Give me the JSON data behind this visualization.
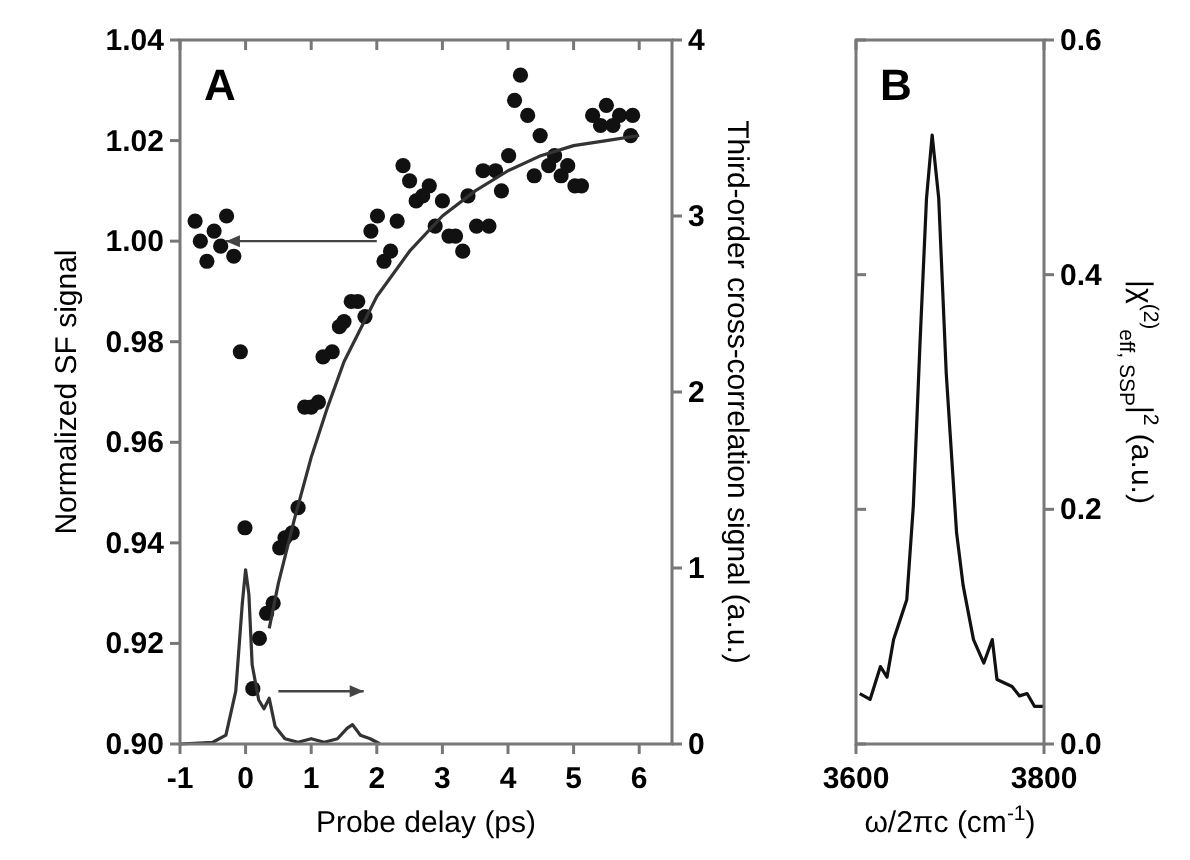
{
  "chart_data": [
    {
      "type": "scatter",
      "title": "A",
      "xlabel": "Probe delay (ps)",
      "ylabel": "Normalized SF signal",
      "y2label": "Third-order cross-correlation signal (a.u.)",
      "xlim": [
        -1,
        6.5
      ],
      "xticks": [
        -1,
        0,
        1,
        2,
        3,
        4,
        5,
        6
      ],
      "ylim": [
        0.9,
        1.04
      ],
      "yticks": [
        {
          "value": 0.9,
          "label": "0.90"
        },
        0.92,
        0.94,
        0.96,
        0.98,
        {
          "value": 1.0,
          "label": "1.00"
        },
        1.02,
        1.04
      ],
      "y2lim": [
        0,
        4
      ],
      "y2ticks": [
        0,
        1,
        2,
        3,
        4
      ],
      "grid": false,
      "series": [
        {
          "type": "scatter",
          "color": "#111111",
          "marker": "circle",
          "x": [
            -0.77,
            -0.69,
            -0.59,
            -0.48,
            -0.38,
            -0.29,
            -0.18,
            -0.08,
            -0.01,
            0.11,
            0.21,
            0.32,
            0.42,
            0.52,
            0.6,
            0.71,
            0.8,
            0.9,
            1.0,
            1.11,
            1.18,
            1.32,
            1.43,
            1.5,
            1.61,
            1.71,
            1.82,
            1.91,
            2.01,
            2.11,
            2.21,
            2.31,
            2.4,
            2.5,
            2.6,
            2.7,
            2.8,
            2.89,
            3.0,
            3.1,
            3.2,
            3.31,
            3.39,
            3.52,
            3.62,
            3.71,
            3.81,
            3.9,
            4.01,
            4.1,
            4.19,
            4.3,
            4.4,
            4.49,
            4.62,
            4.71,
            4.81,
            4.91,
            5.02,
            5.12,
            5.29,
            5.41,
            5.5,
            5.6,
            5.7,
            5.87,
            5.9
          ],
          "values": [
            1.004,
            1.0,
            0.996,
            1.002,
            0.999,
            1.005,
            0.997,
            0.978,
            0.943,
            0.911,
            0.921,
            0.926,
            0.928,
            0.939,
            0.941,
            0.942,
            0.947,
            0.967,
            0.967,
            0.968,
            0.977,
            0.978,
            0.983,
            0.984,
            0.988,
            0.988,
            0.985,
            1.002,
            1.005,
            0.996,
            0.998,
            1.004,
            1.015,
            1.012,
            1.008,
            1.009,
            1.011,
            1.003,
            1.008,
            1.001,
            1.001,
            0.998,
            1.009,
            1.003,
            1.014,
            1.003,
            1.014,
            1.01,
            1.017,
            1.028,
            1.033,
            1.025,
            1.013,
            1.021,
            1.015,
            1.017,
            1.013,
            1.015,
            1.011,
            1.011,
            1.025,
            1.023,
            1.027,
            1.023,
            1.025,
            1.021,
            1.025
          ]
        },
        {
          "type": "line",
          "color": "#333333",
          "line_style": "solid",
          "x": [
            0.36,
            0.5,
            0.75,
            1.0,
            1.25,
            1.5,
            2.0,
            2.5,
            3.0,
            3.5,
            4.0,
            4.5,
            5.0,
            5.5,
            6.0
          ],
          "values": [
            0.923,
            0.932,
            0.945,
            0.957,
            0.967,
            0.976,
            0.989,
            0.998,
            1.005,
            1.01,
            1.014,
            1.017,
            1.019,
            1.02,
            1.021
          ]
        },
        {
          "type": "line",
          "axis": "y2",
          "color": "#333333",
          "line_style": "solid",
          "x": [
            -1.0,
            -0.5,
            -0.3,
            -0.15,
            -0.05,
            0.0,
            0.05,
            0.1,
            0.2,
            0.28,
            0.36,
            0.45,
            0.6,
            0.8,
            1.0,
            1.2,
            1.4,
            1.55,
            1.63,
            1.75,
            1.9,
            2.05
          ],
          "values": [
            0.0,
            0.01,
            0.05,
            0.3,
            0.8,
            0.99,
            0.85,
            0.45,
            0.25,
            0.2,
            0.26,
            0.1,
            0.03,
            0.01,
            0.03,
            0.01,
            0.03,
            0.09,
            0.11,
            0.05,
            0.03,
            0.0
          ]
        }
      ]
    },
    {
      "type": "line",
      "title": "B",
      "xlabel": "ω/2πc (cm$^{-1}$)",
      "y2label": "|χ$^{(2)}$$_{eff, SSP}$|$^{2}$ (a.u.)",
      "xlim": [
        3600,
        3800
      ],
      "xticks": [
        3600,
        3800
      ],
      "y2lim": [
        0,
        0.6
      ],
      "y2ticks": [
        {
          "value": 0,
          "label": "0.0"
        },
        0.2,
        0.4,
        0.6
      ],
      "grid": false,
      "series": [
        {
          "axis": "y2",
          "color": "#111111",
          "line_style": "solid",
          "x": [
            3604,
            3615,
            3626,
            3633,
            3640,
            3647,
            3654,
            3661,
            3668,
            3675,
            3681,
            3688,
            3696,
            3707,
            3714,
            3725,
            3736,
            3745,
            3750,
            3766,
            3774,
            3782,
            3790,
            3799
          ],
          "values": [
            0.043,
            0.038,
            0.066,
            0.057,
            0.089,
            0.106,
            0.123,
            0.203,
            0.34,
            0.465,
            0.519,
            0.465,
            0.316,
            0.18,
            0.135,
            0.089,
            0.069,
            0.089,
            0.055,
            0.049,
            0.041,
            0.043,
            0.032,
            0.032
          ]
        }
      ]
    }
  ]
}
